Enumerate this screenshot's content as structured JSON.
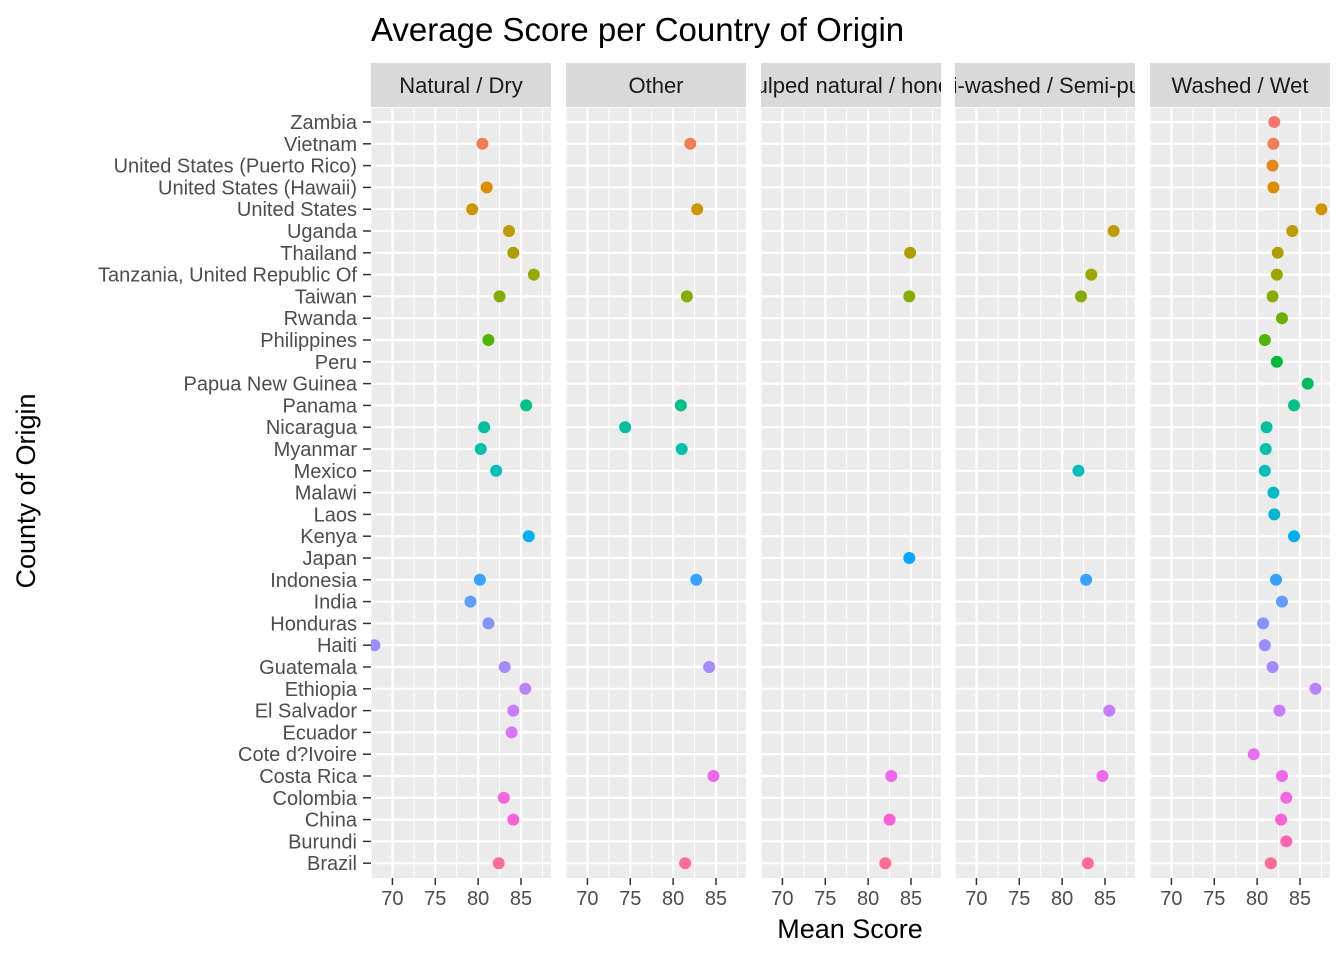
{
  "chart_data": {
    "type": "scatter",
    "title": "Average Score per Country of Origin",
    "xlabel": "Mean Score",
    "ylabel": "County of Origin",
    "xlim": [
      67.5,
      88.5
    ],
    "xticks": [
      70,
      75,
      80,
      85
    ],
    "grid": true,
    "legend": "none",
    "categories": [
      "Zambia",
      "Vietnam",
      "United States (Puerto Rico)",
      "United States (Hawaii)",
      "United States",
      "Uganda",
      "Thailand",
      "Tanzania, United Republic Of",
      "Taiwan",
      "Rwanda",
      "Philippines",
      "Peru",
      "Papua New Guinea",
      "Panama",
      "Nicaragua",
      "Myanmar",
      "Mexico",
      "Malawi",
      "Laos",
      "Kenya",
      "Japan",
      "Indonesia",
      "India",
      "Honduras",
      "Haiti",
      "Guatemala",
      "Ethiopia",
      "El Salvador",
      "Ecuador",
      "Cote d?Ivoire",
      "Costa Rica",
      "Colombia",
      "China",
      "Burundi",
      "Brazil"
    ],
    "panels": [
      {
        "name": "Natural / Dry",
        "points": [
          [
            "Vietnam",
            80.5
          ],
          [
            "United States (Hawaii)",
            81.0
          ],
          [
            "United States",
            79.3
          ],
          [
            "Uganda",
            83.6
          ],
          [
            "Thailand",
            84.1
          ],
          [
            "Tanzania, United Republic Of",
            86.5
          ],
          [
            "Taiwan",
            82.5
          ],
          [
            "Philippines",
            81.2
          ],
          [
            "Panama",
            85.6
          ],
          [
            "Nicaragua",
            80.7
          ],
          [
            "Myanmar",
            80.3
          ],
          [
            "Mexico",
            82.1
          ],
          [
            "Kenya",
            85.9
          ],
          [
            "Indonesia",
            80.2
          ],
          [
            "India",
            79.1
          ],
          [
            "Honduras",
            81.2
          ],
          [
            "Haiti",
            67.9
          ],
          [
            "Guatemala",
            83.1
          ],
          [
            "Ethiopia",
            85.5
          ],
          [
            "El Salvador",
            84.1
          ],
          [
            "Ecuador",
            83.9
          ],
          [
            "Colombia",
            83.0
          ],
          [
            "China",
            84.1
          ],
          [
            "Brazil",
            82.4
          ]
        ]
      },
      {
        "name": "Other",
        "points": [
          [
            "Vietnam",
            82.0
          ],
          [
            "United States",
            82.8
          ],
          [
            "Taiwan",
            81.6
          ],
          [
            "Panama",
            80.9
          ],
          [
            "Nicaragua",
            74.4
          ],
          [
            "Myanmar",
            81.0
          ],
          [
            "Indonesia",
            82.7
          ],
          [
            "Guatemala",
            84.2
          ],
          [
            "Costa Rica",
            84.7
          ],
          [
            "Brazil",
            81.4
          ]
        ]
      },
      {
        "name": "Pulped natural / honey",
        "points": [
          [
            "Thailand",
            84.9
          ],
          [
            "Taiwan",
            84.8
          ],
          [
            "Japan",
            84.8
          ],
          [
            "Costa Rica",
            82.7
          ],
          [
            "China",
            82.5
          ],
          [
            "Brazil",
            82.0
          ]
        ]
      },
      {
        "name": "Semi-washed / Semi-pulped",
        "points": [
          [
            "Uganda",
            86.0
          ],
          [
            "Tanzania, United Republic Of",
            83.4
          ],
          [
            "Taiwan",
            82.2
          ],
          [
            "Mexico",
            81.9
          ],
          [
            "Indonesia",
            82.8
          ],
          [
            "El Salvador",
            85.5
          ],
          [
            "Costa Rica",
            84.7
          ],
          [
            "Brazil",
            83.0
          ]
        ]
      },
      {
        "name": "Washed / Wet",
        "points": [
          [
            "Zambia",
            82.0
          ],
          [
            "Vietnam",
            81.9
          ],
          [
            "United States (Puerto Rico)",
            81.8
          ],
          [
            "United States (Hawaii)",
            81.9
          ],
          [
            "United States",
            87.5
          ],
          [
            "Uganda",
            84.1
          ],
          [
            "Thailand",
            82.4
          ],
          [
            "Tanzania, United Republic Of",
            82.3
          ],
          [
            "Taiwan",
            81.8
          ],
          [
            "Rwanda",
            82.9
          ],
          [
            "Philippines",
            80.9
          ],
          [
            "Peru",
            82.3
          ],
          [
            "Papua New Guinea",
            85.9
          ],
          [
            "Panama",
            84.3
          ],
          [
            "Nicaragua",
            81.1
          ],
          [
            "Myanmar",
            81.0
          ],
          [
            "Mexico",
            80.9
          ],
          [
            "Malawi",
            81.9
          ],
          [
            "Laos",
            82.0
          ],
          [
            "Kenya",
            84.3
          ],
          [
            "Indonesia",
            82.2
          ],
          [
            "India",
            82.9
          ],
          [
            "Honduras",
            80.7
          ],
          [
            "Haiti",
            80.9
          ],
          [
            "Guatemala",
            81.8
          ],
          [
            "Ethiopia",
            86.8
          ],
          [
            "El Salvador",
            82.6
          ],
          [
            "Cote d?Ivoire",
            79.6
          ],
          [
            "Costa Rica",
            82.9
          ],
          [
            "Colombia",
            83.4
          ],
          [
            "China",
            82.8
          ],
          [
            "Burundi",
            83.4
          ],
          [
            "Brazil",
            81.6
          ]
        ]
      }
    ],
    "colors": [
      "#f8766d",
      "#f27d52",
      "#e7861b",
      "#db8e00",
      "#cd9600",
      "#be9c00",
      "#ae9f00",
      "#9ca700",
      "#86ac00",
      "#6bb100",
      "#4fb500",
      "#00ba38",
      "#00bd5c",
      "#00c08b",
      "#00bfa0",
      "#00c1ab",
      "#00beb9",
      "#00bbc6",
      "#00b6d0",
      "#00b0f6",
      "#00a9ff",
      "#35a2ff",
      "#619cff",
      "#8494ff",
      "#9590ff",
      "#a58aff",
      "#b983ff",
      "#c77cff",
      "#d874fd",
      "#e66ff2",
      "#ef67eb",
      "#f564e3",
      "#fb61d7",
      "#ff64b0",
      "#ff6c91"
    ],
    "panel_background": "#ebebeb",
    "strip_background": "#d9d9d9",
    "grid_color": "#ffffff"
  }
}
